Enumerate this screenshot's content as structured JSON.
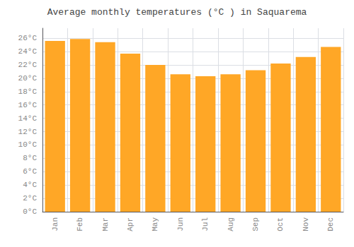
{
  "chart_data": {
    "type": "bar",
    "title": "Average monthly temperatures (°C ) in Saquarema",
    "categories": [
      "Jan",
      "Feb",
      "Mar",
      "Apr",
      "May",
      "Jun",
      "Jul",
      "Aug",
      "Sep",
      "Oct",
      "Nov",
      "Dec"
    ],
    "values": [
      25.6,
      25.9,
      25.4,
      23.7,
      22.0,
      20.6,
      20.3,
      20.6,
      21.2,
      22.2,
      23.2,
      24.7
    ],
    "color": "#FFA726",
    "ylim": [
      0,
      27.5
    ],
    "yticks": [
      {
        "value": 0,
        "label": "0°C"
      },
      {
        "value": 2,
        "label": "2°C"
      },
      {
        "value": 4,
        "label": "4°C"
      },
      {
        "value": 6,
        "label": "6°C"
      },
      {
        "value": 8,
        "label": "8°C"
      },
      {
        "value": 10,
        "label": "10°C"
      },
      {
        "value": 12,
        "label": "12°C"
      },
      {
        "value": 14,
        "label": "14°C"
      },
      {
        "value": 16,
        "label": "16°C"
      },
      {
        "value": 18,
        "label": "18°C"
      },
      {
        "value": 20,
        "label": "20°C"
      },
      {
        "value": 22,
        "label": "22°C"
      },
      {
        "value": 24,
        "label": "24°C"
      },
      {
        "value": 26,
        "label": "26°C"
      }
    ],
    "grid": true
  }
}
